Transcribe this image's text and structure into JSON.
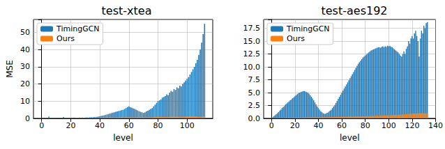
{
  "chart_data": [
    {
      "type": "bar",
      "title": "test-xtea",
      "xlabel": "level",
      "ylabel": "MSE",
      "x": [
        0,
        1,
        2,
        3,
        4,
        5,
        6,
        7,
        8,
        9,
        10,
        11,
        12,
        13,
        14,
        15,
        16,
        17,
        18,
        19,
        20,
        21,
        22,
        23,
        24,
        25,
        26,
        27,
        28,
        29,
        30,
        31,
        32,
        33,
        34,
        35,
        36,
        37,
        38,
        39,
        40,
        41,
        42,
        43,
        44,
        45,
        46,
        47,
        48,
        49,
        50,
        51,
        52,
        53,
        54,
        55,
        56,
        57,
        58,
        59,
        60,
        61,
        62,
        63,
        64,
        65,
        66,
        67,
        68,
        69,
        70,
        71,
        72,
        73,
        74,
        75,
        76,
        77,
        78,
        79,
        80,
        81,
        82,
        83,
        84,
        85,
        86,
        87,
        88,
        89,
        90,
        91,
        92,
        93,
        94,
        95,
        96,
        97,
        98,
        99,
        100,
        101,
        102,
        103,
        104,
        105,
        106,
        107,
        108,
        109,
        110,
        111,
        112
      ],
      "series": [
        {
          "name": "TimingGCN",
          "color": "#1f77b4",
          "values": [
            0.1,
            0.1,
            0.2,
            0.1,
            0.3,
            1.0,
            0.3,
            0.2,
            0.2,
            0.3,
            0.3,
            0.2,
            0.3,
            0.4,
            0.3,
            0.8,
            0.4,
            0.3,
            0.4,
            0.3,
            0.4,
            0.3,
            0.5,
            0.4,
            0.3,
            0.4,
            0.5,
            0.4,
            0.5,
            0.4,
            0.5,
            0.6,
            0.5,
            0.6,
            0.7,
            0.6,
            0.8,
            0.7,
            0.9,
            1.0,
            1.2,
            1.4,
            1.6,
            1.8,
            2.0,
            2.3,
            2.5,
            2.8,
            3.0,
            3.3,
            3.5,
            3.8,
            4.0,
            4.3,
            4.5,
            4.8,
            5.0,
            5.5,
            6.0,
            6.5,
            7.0,
            6.5,
            6.2,
            5.8,
            5.5,
            5.0,
            4.6,
            4.2,
            3.8,
            3.5,
            3.2,
            3.5,
            4.0,
            4.5,
            5.0,
            5.5,
            6.0,
            7.0,
            8.0,
            9.0,
            10.0,
            10.5,
            11.0,
            12.0,
            12.5,
            13.0,
            14.0,
            13.5,
            15.0,
            16.0,
            15.5,
            17.0,
            16.5,
            18.0,
            17.5,
            19.0,
            18.5,
            20.0,
            21.0,
            22.0,
            23.0,
            24.0,
            25.5,
            27.0,
            28.5,
            30.0,
            32.0,
            34.0,
            37.0,
            40.0,
            44.0,
            49.0,
            55.0
          ]
        },
        {
          "name": "Ours",
          "color": "#ff7f0e",
          "values": [
            0.05,
            0.05,
            0.05,
            0.05,
            0.1,
            0.1,
            0.1,
            0.1,
            0.1,
            0.1,
            0.1,
            0.1,
            0.1,
            0.1,
            0.1,
            0.15,
            0.1,
            0.1,
            0.15,
            0.1,
            0.15,
            0.15,
            0.2,
            0.15,
            0.2,
            0.2,
            0.2,
            0.2,
            0.25,
            0.2,
            0.25,
            0.25,
            0.3,
            0.25,
            0.3,
            0.3,
            0.3,
            0.35,
            0.3,
            0.35,
            0.35,
            0.4,
            0.35,
            0.4,
            0.4,
            0.45,
            0.4,
            0.45,
            0.5,
            0.45,
            0.5,
            0.5,
            0.55,
            0.5,
            0.55,
            0.6,
            0.55,
            0.6,
            0.6,
            0.65,
            0.6,
            0.65,
            0.6,
            0.6,
            0.55,
            0.55,
            0.5,
            0.5,
            0.5,
            0.5,
            0.5,
            0.55,
            0.55,
            0.6,
            0.6,
            0.65,
            0.65,
            0.7,
            0.7,
            0.75,
            0.75,
            0.8,
            0.8,
            0.8,
            0.85,
            0.85,
            0.9,
            0.85,
            0.9,
            0.9,
            0.9,
            0.95,
            0.9,
            0.95,
            0.95,
            1.0,
            0.95,
            1.0,
            1.0,
            1.05,
            1.0,
            1.05,
            1.05,
            1.1,
            1.05,
            1.1,
            1.1,
            1.15,
            1.1,
            1.15,
            1.15,
            1.2,
            1.2
          ]
        }
      ],
      "xlim": [
        -5.6,
        117.6
      ],
      "xticks": [
        0,
        20,
        40,
        60,
        80,
        100
      ],
      "ylim": [
        0,
        57.5
      ],
      "yticks": [
        0,
        10,
        20,
        30,
        40,
        50
      ],
      "grid": true,
      "legend": "upper left"
    },
    {
      "type": "bar",
      "title": "test-aes192",
      "xlabel": "level",
      "x": [
        0,
        1,
        2,
        3,
        4,
        5,
        6,
        7,
        8,
        9,
        10,
        11,
        12,
        13,
        14,
        15,
        16,
        17,
        18,
        19,
        20,
        21,
        22,
        23,
        24,
        25,
        26,
        27,
        28,
        29,
        30,
        31,
        32,
        33,
        34,
        35,
        36,
        37,
        38,
        39,
        40,
        41,
        42,
        43,
        44,
        45,
        46,
        47,
        48,
        49,
        50,
        51,
        52,
        53,
        54,
        55,
        56,
        57,
        58,
        59,
        60,
        61,
        62,
        63,
        64,
        65,
        66,
        67,
        68,
        69,
        70,
        71,
        72,
        73,
        74,
        75,
        76,
        77,
        78,
        79,
        80,
        81,
        82,
        83,
        84,
        85,
        86,
        87,
        88,
        89,
        90,
        91,
        92,
        93,
        94,
        95,
        96,
        97,
        98,
        99,
        100,
        101,
        102,
        103,
        104,
        105,
        106,
        107,
        108,
        109,
        110,
        111,
        112,
        113,
        114,
        115,
        116,
        117,
        118,
        119,
        120,
        121,
        122,
        123,
        124,
        125,
        126,
        127,
        128,
        129,
        130,
        131,
        132,
        133
      ],
      "series": [
        {
          "name": "TimingGCN",
          "color": "#1f77b4",
          "values": [
            0.1,
            0.2,
            0.4,
            0.6,
            0.8,
            1.0,
            1.2,
            1.5,
            1.7,
            2.0,
            2.2,
            2.4,
            2.7,
            2.9,
            3.1,
            3.3,
            3.5,
            3.7,
            3.9,
            4.1,
            4.3,
            4.5,
            4.7,
            4.9,
            5.0,
            5.1,
            5.2,
            5.3,
            5.3,
            5.2,
            5.1,
            5.0,
            4.8,
            4.5,
            4.2,
            3.9,
            3.5,
            3.1,
            2.7,
            2.3,
            2.0,
            1.7,
            1.4,
            1.2,
            1.0,
            0.9,
            0.9,
            1.0,
            1.1,
            1.3,
            1.5,
            1.7,
            2.0,
            2.3,
            2.6,
            3.0,
            3.4,
            3.8,
            4.2,
            4.6,
            5.0,
            5.4,
            5.8,
            6.2,
            6.6,
            7.0,
            7.4,
            7.8,
            8.2,
            8.6,
            9.0,
            9.4,
            9.8,
            10.2,
            10.6,
            10.9,
            11.2,
            11.5,
            11.8,
            12.0,
            12.2,
            12.4,
            12.6,
            12.8,
            13.0,
            13.2,
            13.3,
            13.4,
            13.5,
            13.6,
            13.7,
            13.8,
            13.8,
            13.7,
            13.9,
            14.0,
            13.8,
            14.0,
            13.9,
            14.1,
            14.0,
            14.1,
            13.9,
            13.8,
            13.6,
            13.4,
            13.2,
            13.0,
            12.8,
            12.5,
            12.2,
            12.0,
            12.5,
            13.0,
            12.5,
            13.5,
            14.0,
            15.0,
            14.5,
            15.5,
            16.0,
            15.5,
            16.5,
            17.0,
            16.0,
            15.0,
            12.0,
            15.5,
            17.0,
            16.5,
            18.0,
            17.5,
            18.5,
            18.7
          ]
        },
        {
          "name": "Ours",
          "color": "#ff7f0e",
          "values": [
            0.02,
            0.03,
            0.04,
            0.05,
            0.05,
            0.06,
            0.06,
            0.07,
            0.07,
            0.08,
            0.08,
            0.09,
            0.09,
            0.1,
            0.1,
            0.1,
            0.11,
            0.11,
            0.12,
            0.12,
            0.13,
            0.13,
            0.14,
            0.14,
            0.15,
            0.15,
            0.16,
            0.16,
            0.17,
            0.17,
            0.18,
            0.18,
            0.18,
            0.19,
            0.19,
            0.2,
            0.2,
            0.2,
            0.2,
            0.21,
            0.21,
            0.21,
            0.22,
            0.22,
            0.22,
            0.23,
            0.23,
            0.23,
            0.24,
            0.24,
            0.25,
            0.25,
            0.26,
            0.26,
            0.27,
            0.27,
            0.28,
            0.28,
            0.29,
            0.29,
            0.3,
            0.3,
            0.31,
            0.31,
            0.32,
            0.32,
            0.33,
            0.33,
            0.34,
            0.34,
            0.35,
            0.35,
            0.36,
            0.36,
            0.37,
            0.38,
            0.38,
            0.39,
            0.4,
            0.4,
            0.41,
            0.42,
            0.43,
            0.44,
            0.45,
            0.46,
            0.47,
            0.48,
            0.49,
            0.5,
            0.51,
            0.52,
            0.53,
            0.54,
            0.55,
            0.56,
            0.57,
            0.58,
            0.59,
            0.6,
            0.61,
            0.62,
            0.63,
            0.64,
            0.65,
            0.66,
            0.67,
            0.68,
            0.69,
            0.7,
            0.72,
            0.74,
            0.76,
            0.78,
            0.8,
            0.82,
            0.84,
            0.86,
            0.88,
            0.9,
            0.92,
            0.94,
            0.95,
            0.96,
            0.97,
            0.98,
            0.98,
            0.99,
            1.0,
            1.0,
            0.98,
            0.97,
            0.96,
            0.95
          ]
        }
      ],
      "xlim": [
        -6.7,
        140
      ],
      "xticks": [
        0,
        20,
        40,
        60,
        80,
        100,
        120,
        140
      ],
      "ylim": [
        0,
        19.2
      ],
      "yticks": [
        {
          "value": 0,
          "label": "0.0"
        },
        2.5,
        {
          "value": 5,
          "label": "5.0"
        },
        7.5,
        {
          "value": 10,
          "label": "10.0"
        },
        12.5,
        {
          "value": 15,
          "label": "15.0"
        },
        17.5
      ],
      "grid": true,
      "legend": "upper left"
    }
  ]
}
